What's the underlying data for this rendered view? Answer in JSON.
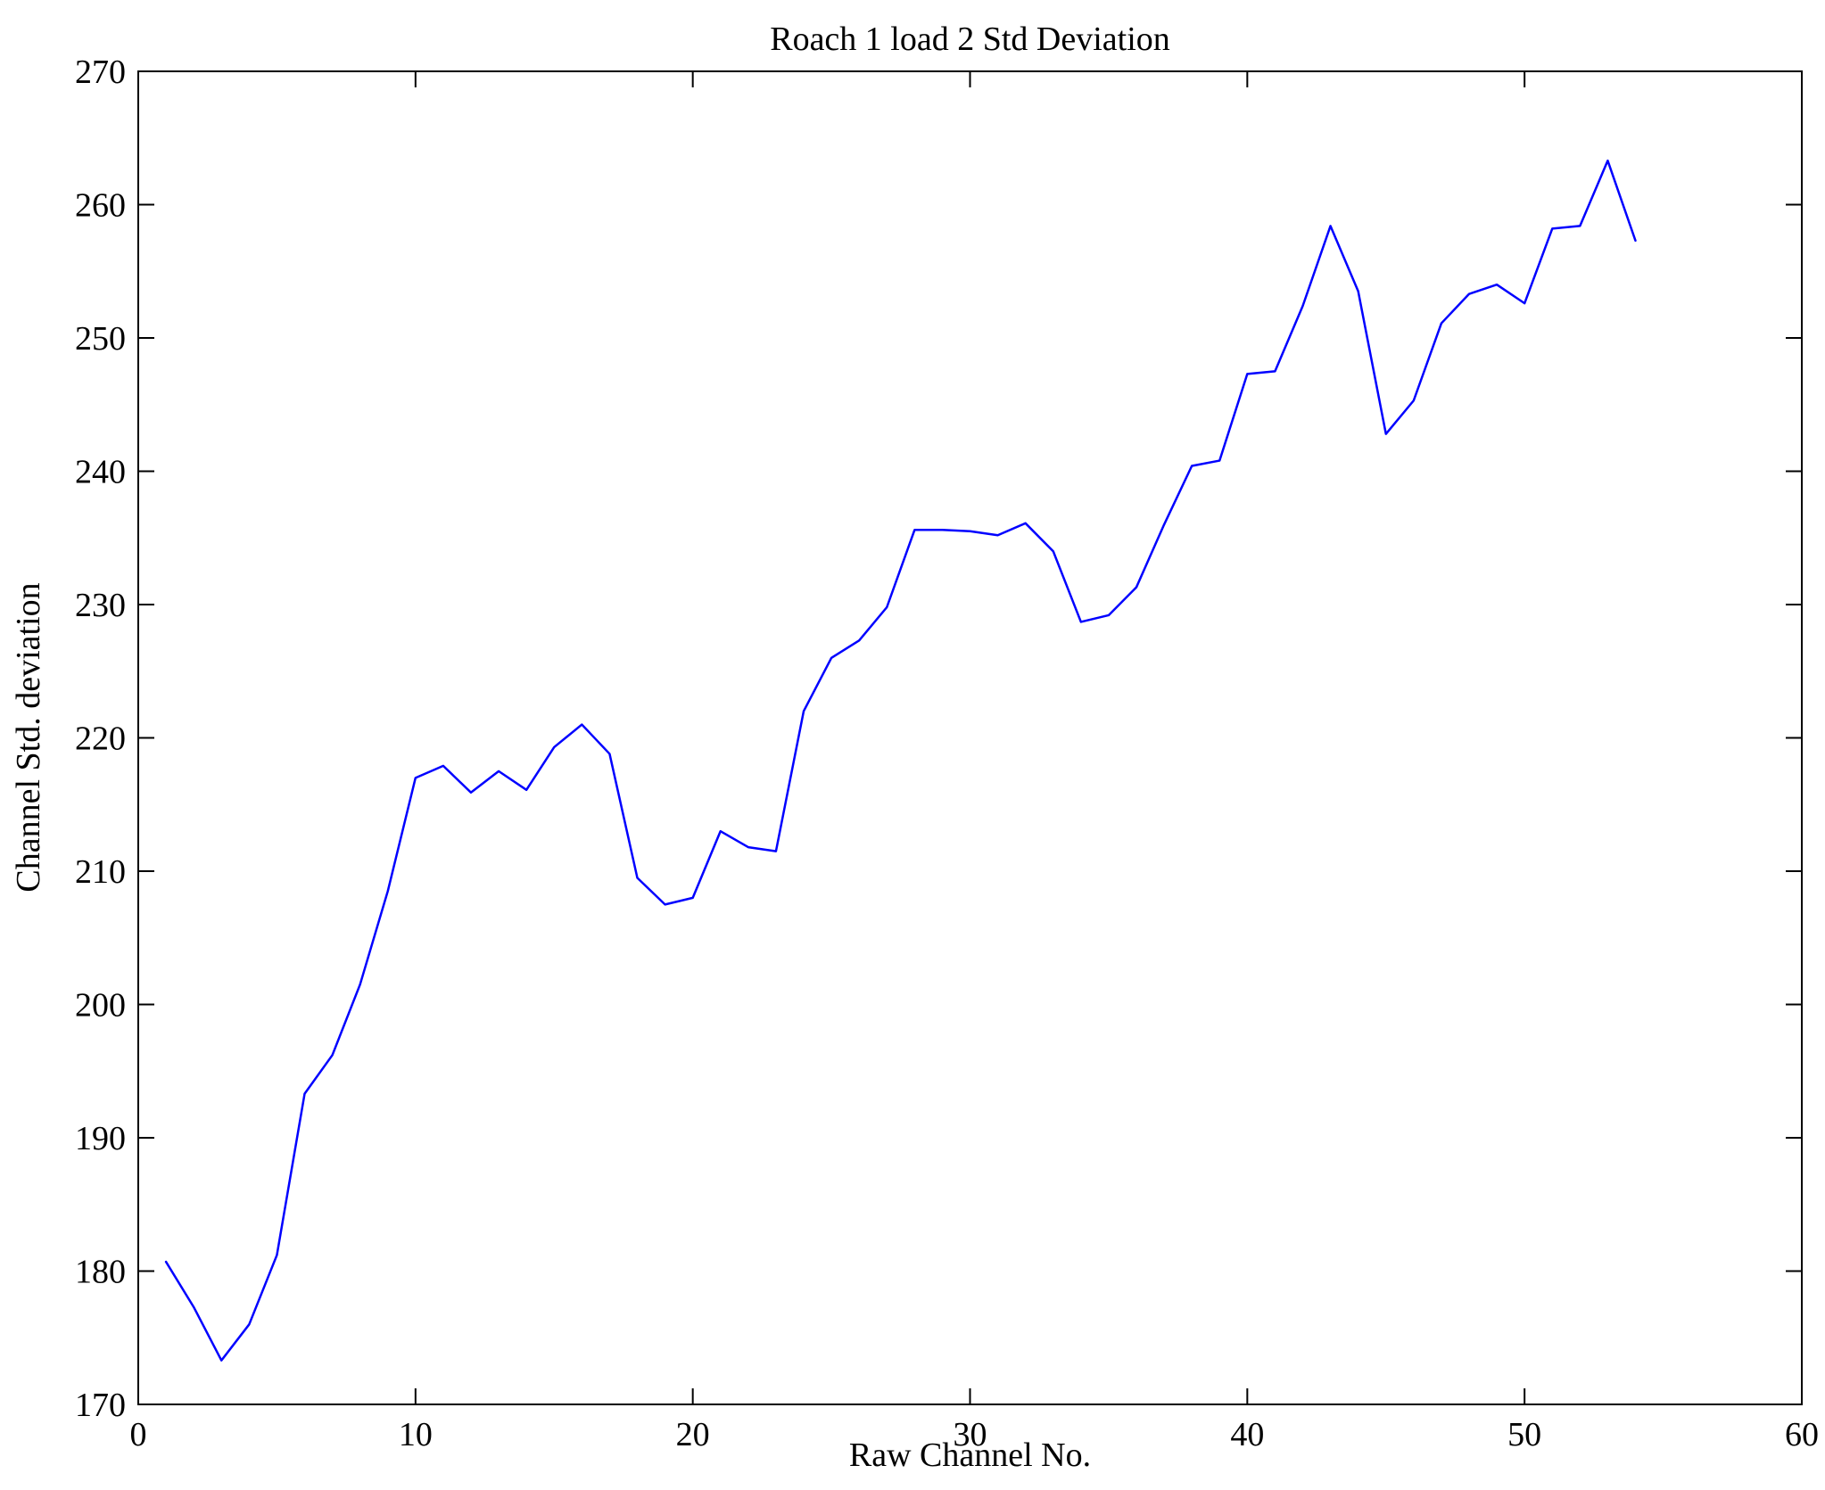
{
  "figure": {
    "background": "#ffffff"
  },
  "chart_data": {
    "type": "line",
    "title": "Roach 1 load 2 Std Deviation",
    "xlabel": "Raw Channel No.",
    "ylabel": "Channel Std. deviation",
    "xlim": [
      0,
      60
    ],
    "ylim": [
      170,
      270
    ],
    "x_ticks": [
      0,
      10,
      20,
      30,
      40,
      50,
      60
    ],
    "y_ticks": [
      170,
      180,
      190,
      200,
      210,
      220,
      230,
      240,
      250,
      260,
      270
    ],
    "grid": false,
    "legend": "none",
    "line_color": "#0000ff",
    "axis_color": "#000000",
    "series": [
      {
        "name": "Channel Std. deviation",
        "x": [
          1,
          2,
          3,
          4,
          5,
          6,
          7,
          8,
          9,
          10,
          11,
          12,
          13,
          14,
          15,
          16,
          17,
          18,
          19,
          20,
          21,
          22,
          23,
          24,
          25,
          26,
          27,
          28,
          29,
          30,
          31,
          32,
          33,
          34,
          35,
          36,
          37,
          38,
          39,
          40,
          41,
          42,
          43,
          44,
          45,
          46,
          47,
          48,
          49,
          50,
          51,
          52,
          53,
          54
        ],
        "values": [
          180.7,
          177.3,
          173.3,
          176.0,
          181.2,
          193.3,
          196.2,
          201.5,
          208.5,
          217.0,
          217.9,
          215.9,
          217.5,
          216.1,
          219.3,
          221.0,
          218.8,
          209.5,
          207.5,
          208.0,
          213.0,
          211.8,
          211.5,
          222.0,
          226.0,
          227.3,
          229.8,
          235.6,
          235.6,
          235.5,
          235.2,
          236.1,
          234.0,
          228.7,
          229.2,
          231.3,
          236.0,
          240.4,
          240.8,
          247.3,
          247.5,
          252.4,
          258.4,
          253.5,
          242.8,
          245.3,
          251.1,
          253.3,
          254.0,
          252.6,
          258.2,
          258.4,
          263.3,
          257.3
        ]
      }
    ]
  }
}
